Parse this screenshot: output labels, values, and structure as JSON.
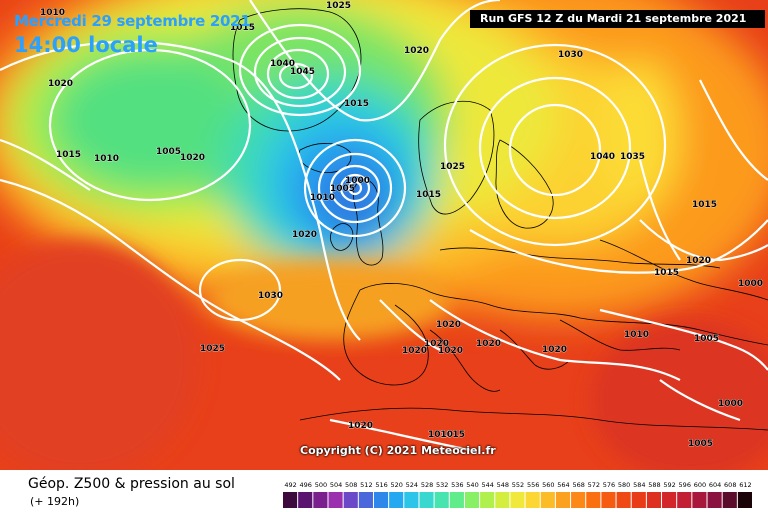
{
  "header": {
    "date_label": "Mercredi 29 septembre 2021",
    "time_label": "14:00 locale",
    "run_label": "Run GFS 12 Z du Mardi 21 septembre 2021"
  },
  "copyright": "Copyright (C) 2021 Meteociel.fr",
  "legend": {
    "title": "Géop. Z500 & pression au sol",
    "subtitle": "(+ 192h)",
    "scale_values": [
      "492",
      "496",
      "500",
      "504",
      "508",
      "512",
      "516",
      "520",
      "524",
      "528",
      "532",
      "536",
      "540",
      "544",
      "548",
      "552",
      "556",
      "560",
      "564",
      "568",
      "572",
      "576",
      "580",
      "584",
      "588",
      "592",
      "596",
      "600",
      "604",
      "608",
      "612"
    ],
    "scale_colors": [
      "#3c0a3c",
      "#5a1470",
      "#7a208e",
      "#9a30ae",
      "#6a48c8",
      "#4a68dc",
      "#2e88ea",
      "#24a8f0",
      "#2cc4e8",
      "#38d8d0",
      "#48e4b0",
      "#60ec8a",
      "#88f064",
      "#b0f04c",
      "#d4ee40",
      "#f0e83a",
      "#fcd632",
      "#fcbc28",
      "#fca020",
      "#fc8818",
      "#fa7010",
      "#f65c10",
      "#f04a14",
      "#e83c18",
      "#de3020",
      "#d2262a",
      "#c21e34",
      "#a8183c",
      "#8a1240",
      "#5a0c2a",
      "#1a0408"
    ]
  },
  "pressure_labels": [
    {
      "id": "p1010-ne-green",
      "text": "1010"
    },
    {
      "id": "p1020-nw",
      "text": "1020"
    },
    {
      "id": "p1015-w",
      "text": "1015"
    },
    {
      "id": "p1010-w",
      "text": "1010"
    },
    {
      "id": "p1005-w",
      "text": "1005"
    },
    {
      "id": "p1025-top",
      "text": "1025"
    },
    {
      "id": "p1015-top",
      "text": "1015"
    },
    {
      "id": "p1020-greenland",
      "text": "1020"
    },
    {
      "id": "p1045-greenland",
      "text": "1045"
    },
    {
      "id": "p1040-greenland",
      "text": "1040"
    },
    {
      "id": "p1020-norway-sea",
      "text": "1020"
    },
    {
      "id": "p1015-iceland",
      "text": "1015"
    },
    {
      "id": "p1000-low",
      "text": "1000"
    },
    {
      "id": "p1005-low",
      "text": "1005"
    },
    {
      "id": "p1010-low",
      "text": "1010"
    },
    {
      "id": "p1020-atl",
      "text": "1020"
    },
    {
      "id": "p1030-atl",
      "text": "1030"
    },
    {
      "id": "p1025-atl",
      "text": "1025"
    },
    {
      "id": "p1030-russia",
      "text": "1030"
    },
    {
      "id": "p1025-scand",
      "text": "1025"
    },
    {
      "id": "p1015-scand",
      "text": "1015"
    },
    {
      "id": "p1040-high",
      "text": "1040"
    },
    {
      "id": "p1035-high",
      "text": "1035"
    },
    {
      "id": "p1015-east",
      "text": "1015"
    },
    {
      "id": "p1020-east",
      "text": "1020"
    },
    {
      "id": "p1015-east2",
      "text": "1015"
    },
    {
      "id": "p1000-east",
      "text": "1000"
    },
    {
      "id": "p1010-balkan",
      "text": "1010"
    },
    {
      "id": "p1005-turkey",
      "text": "1005"
    },
    {
      "id": "p1000-se",
      "text": "1000"
    },
    {
      "id": "p1005-se",
      "text": "1005"
    },
    {
      "id": "p1020-alps",
      "text": "1020"
    },
    {
      "id": "p1020-italy",
      "text": "1020"
    },
    {
      "id": "p1020-med1",
      "text": "1020"
    },
    {
      "id": "p1020-med2",
      "text": "1020"
    },
    {
      "id": "p1020-med3",
      "text": "1020"
    },
    {
      "id": "p1020-spain",
      "text": "1020"
    },
    {
      "id": "p1020-africa",
      "text": "1020"
    },
    {
      "id": "p1015-africa",
      "text": "1015"
    },
    {
      "id": "p1010-africa",
      "text": "1010"
    }
  ],
  "colors": {
    "land_outline": "#000000",
    "isobar": "#ffffff"
  }
}
